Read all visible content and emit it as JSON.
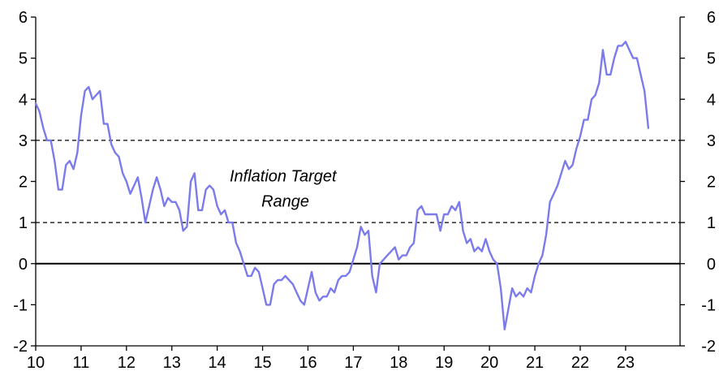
{
  "chart_data": {
    "type": "line",
    "title": "",
    "xlabel": "",
    "ylabel": "",
    "xlim": [
      10,
      24.2
    ],
    "ylim": [
      -2,
      6
    ],
    "x_ticks": [
      10,
      11,
      12,
      13,
      14,
      15,
      16,
      17,
      18,
      19,
      20,
      21,
      22,
      23
    ],
    "x_tick_labels": [
      "10",
      "11",
      "12",
      "13",
      "14",
      "15",
      "16",
      "17",
      "18",
      "19",
      "20",
      "21",
      "22",
      "23"
    ],
    "y_ticks": [
      -2,
      -1,
      0,
      1,
      2,
      3,
      4,
      5,
      6
    ],
    "y_tick_labels": [
      "-2",
      "-1",
      "0",
      "1",
      "2",
      "3",
      "4",
      "5",
      "6"
    ],
    "y_axis_right": true,
    "grid": false,
    "reference_lines": [
      {
        "y": 3,
        "style": "dashed"
      },
      {
        "y": 1,
        "style": "dashed"
      },
      {
        "y": 0,
        "style": "solid"
      }
    ],
    "annotation": {
      "lines": [
        "Inflation Target",
        "Range"
      ],
      "x": 15.5,
      "y": 2.0
    },
    "line_color": "#7b7bec",
    "series": [
      {
        "x": [
          10.0,
          10.083,
          10.167,
          10.25,
          10.333,
          10.417,
          10.5,
          10.583,
          10.667,
          10.75,
          10.833,
          10.917,
          11.0,
          11.083,
          11.167,
          11.25,
          11.333,
          11.417,
          11.5,
          11.583,
          11.667,
          11.75,
          11.833,
          11.917,
          12.0,
          12.083,
          12.167,
          12.25,
          12.333,
          12.417,
          12.5,
          12.583,
          12.667,
          12.75,
          12.833,
          12.917,
          13.0,
          13.083,
          13.167,
          13.25,
          13.333,
          13.417,
          13.5,
          13.583,
          13.667,
          13.75,
          13.833,
          13.917,
          14.0,
          14.083,
          14.167,
          14.25,
          14.333,
          14.417,
          14.5,
          14.583,
          14.667,
          14.75,
          14.833,
          14.917,
          15.0,
          15.083,
          15.167,
          15.25,
          15.333,
          15.417,
          15.5,
          15.583,
          15.667,
          15.75,
          15.833,
          15.917,
          16.0,
          16.083,
          16.167,
          16.25,
          16.333,
          16.417,
          16.5,
          16.583,
          16.667,
          16.75,
          16.833,
          16.917,
          17.0,
          17.083,
          17.167,
          17.25,
          17.333,
          17.417,
          17.5,
          17.583,
          17.667,
          17.75,
          17.833,
          17.917,
          18.0,
          18.083,
          18.167,
          18.25,
          18.333,
          18.417,
          18.5,
          18.583,
          18.667,
          18.75,
          18.833,
          18.917,
          19.0,
          19.083,
          19.167,
          19.25,
          19.333,
          19.417,
          19.5,
          19.583,
          19.667,
          19.75,
          19.833,
          19.917,
          20.0,
          20.083,
          20.167,
          20.25,
          20.333,
          20.417,
          20.5,
          20.583,
          20.667,
          20.75,
          20.833,
          20.917,
          21.0,
          21.083,
          21.167,
          21.25,
          21.333,
          21.417,
          21.5,
          21.583,
          21.667,
          21.75,
          21.833,
          21.917,
          22.0,
          22.083,
          22.167,
          22.25,
          22.333,
          22.417,
          22.5,
          22.583,
          22.667,
          22.75,
          22.833,
          22.917,
          23.0,
          23.083,
          23.167,
          23.25,
          23.333,
          23.417,
          23.5
        ],
        "values": [
          3.9,
          3.7,
          3.3,
          3.0,
          3.0,
          2.5,
          1.8,
          1.8,
          2.4,
          2.5,
          2.3,
          2.7,
          3.6,
          4.2,
          4.3,
          4.0,
          4.1,
          4.2,
          3.4,
          3.4,
          2.9,
          2.7,
          2.6,
          2.2,
          2.0,
          1.7,
          1.9,
          2.1,
          1.6,
          1.0,
          1.4,
          1.8,
          2.1,
          1.8,
          1.4,
          1.6,
          1.5,
          1.5,
          1.3,
          0.8,
          0.9,
          2.0,
          2.2,
          1.3,
          1.3,
          1.8,
          1.9,
          1.8,
          1.4,
          1.2,
          1.3,
          1.0,
          1.0,
          0.5,
          0.3,
          0.0,
          -0.3,
          -0.3,
          -0.1,
          -0.2,
          -0.6,
          -1.0,
          -1.0,
          -0.5,
          -0.4,
          -0.4,
          -0.3,
          -0.4,
          -0.5,
          -0.7,
          -0.9,
          -1.0,
          -0.6,
          -0.2,
          -0.7,
          -0.9,
          -0.8,
          -0.8,
          -0.6,
          -0.7,
          -0.4,
          -0.3,
          -0.3,
          -0.2,
          0.1,
          0.4,
          0.9,
          0.7,
          0.8,
          -0.3,
          -0.7,
          0.0,
          0.1,
          0.2,
          0.3,
          0.4,
          0.1,
          0.2,
          0.2,
          0.4,
          0.5,
          1.3,
          1.4,
          1.2,
          1.2,
          1.2,
          1.2,
          0.8,
          1.2,
          1.2,
          1.4,
          1.3,
          1.5,
          0.8,
          0.5,
          0.6,
          0.3,
          0.4,
          0.3,
          0.6,
          0.3,
          0.1,
          0.0,
          -0.6,
          -1.6,
          -1.1,
          -0.6,
          -0.8,
          -0.7,
          -0.8,
          -0.6,
          -0.7,
          -0.3,
          0.0,
          0.2,
          0.7,
          1.5,
          1.7,
          1.9,
          2.2,
          2.5,
          2.3,
          2.4,
          2.8,
          3.1,
          3.5,
          3.5,
          4.0,
          4.1,
          4.4,
          5.2,
          4.6,
          4.6,
          5.0,
          5.3,
          5.3,
          5.4,
          5.2,
          5.0,
          5.0,
          4.6,
          4.2,
          3.3
        ]
      }
    ]
  }
}
